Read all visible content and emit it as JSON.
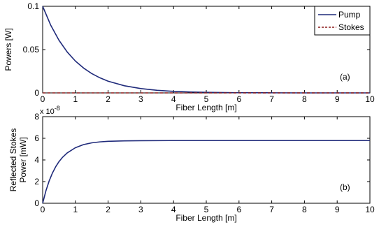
{
  "chart_data": [
    {
      "type": "line",
      "xlabel": "Fiber Length [m]",
      "ylabel": "Powers [W]",
      "xlim": [
        0,
        10
      ],
      "ylim": [
        0,
        0.1
      ],
      "x_ticks": [
        "0",
        "1",
        "2",
        "3",
        "4",
        "5",
        "6",
        "7",
        "8",
        "9",
        "10"
      ],
      "y_ticks": [
        "0",
        "0.05",
        "0.1"
      ],
      "annotation": "(a)",
      "grid": false,
      "legend_position": "top-right",
      "series": [
        {
          "name": "Pump",
          "color": "#1f2a7a",
          "style": "solid",
          "x": [
            0,
            0.25,
            0.5,
            0.75,
            1,
            1.25,
            1.5,
            1.75,
            2,
            2.5,
            3,
            3.5,
            4,
            4.5,
            5,
            6,
            7,
            8,
            9,
            10
          ],
          "y": [
            0.1,
            0.0779,
            0.0607,
            0.0472,
            0.0368,
            0.0287,
            0.0223,
            0.0174,
            0.0135,
            0.0082,
            0.005,
            0.003,
            0.0018,
            0.0011,
            0.0007,
            0.0002,
            0.0001,
            0,
            0,
            0
          ]
        },
        {
          "name": "Stokes",
          "color": "#8b1a1a",
          "style": "dashed",
          "x": [
            0,
            10
          ],
          "y": [
            0,
            0
          ]
        }
      ]
    },
    {
      "type": "line",
      "xlabel": "Fiber Length [m]",
      "ylabel": [
        "Reflected Stokes",
        "Power [mW]"
      ],
      "y_exponent_label": "x 10",
      "y_exponent_power": "-8",
      "xlim": [
        0,
        10
      ],
      "ylim": [
        0,
        8
      ],
      "x_ticks": [
        "0",
        "1",
        "2",
        "3",
        "4",
        "5",
        "6",
        "7",
        "8",
        "9",
        "10"
      ],
      "y_ticks": [
        "0",
        "2",
        "4",
        "6",
        "8"
      ],
      "annotation": "(b)",
      "grid": false,
      "series": [
        {
          "color": "#1f2a7a",
          "style": "solid",
          "x": [
            0,
            0.1,
            0.2,
            0.3,
            0.4,
            0.5,
            0.6,
            0.75,
            1,
            1.25,
            1.5,
            1.75,
            2,
            2.5,
            3,
            4,
            5,
            6,
            7,
            8,
            9,
            10
          ],
          "y": [
            0,
            1.15,
            2.07,
            2.8,
            3.38,
            3.85,
            4.22,
            4.65,
            5.13,
            5.42,
            5.58,
            5.67,
            5.72,
            5.76,
            5.78,
            5.79,
            5.79,
            5.79,
            5.79,
            5.79,
            5.79,
            5.79
          ]
        }
      ]
    }
  ]
}
